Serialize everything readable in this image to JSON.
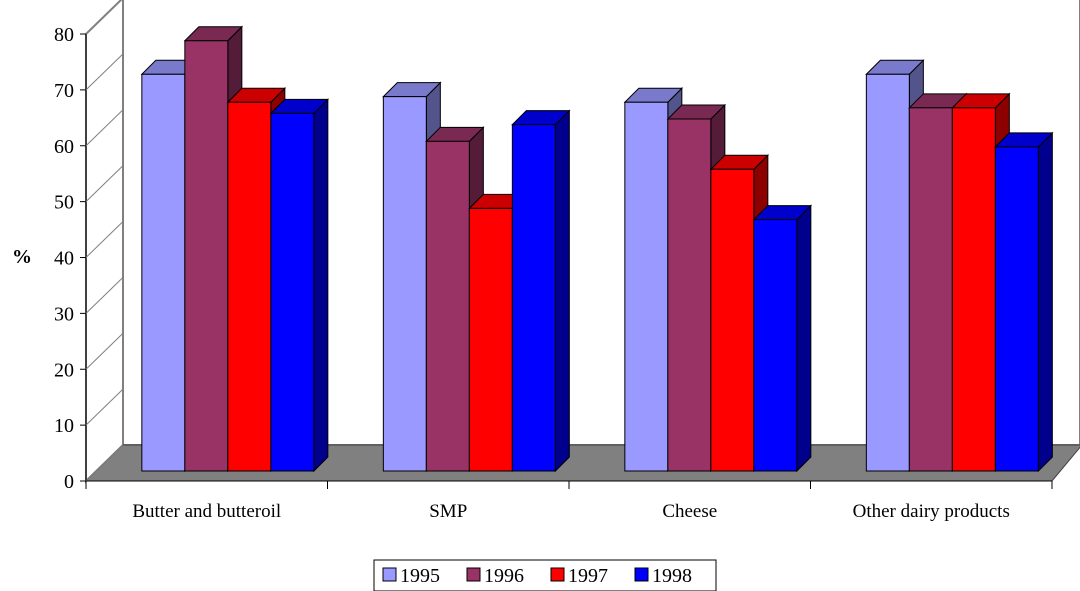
{
  "chart_data": {
    "type": "bar",
    "categories": [
      "Butter and butteroil",
      "SMP",
      "Cheese",
      "Other dairy products"
    ],
    "series": [
      {
        "name": "1995",
        "values": [
          71,
          67,
          66,
          71
        ],
        "color": "#9999ff"
      },
      {
        "name": "1996",
        "values": [
          77,
          59,
          63,
          65
        ],
        "color": "#993366"
      },
      {
        "name": "1997",
        "values": [
          66,
          47,
          54,
          65
        ],
        "color": "#ff0000"
      },
      {
        "name": "1998",
        "values": [
          64,
          62,
          45,
          58
        ],
        "color": "#0000ff"
      }
    ],
    "title": "",
    "xlabel": "",
    "ylabel": "%",
    "ylim": [
      0,
      80
    ],
    "yticks": [
      0,
      10,
      20,
      30,
      40,
      50,
      60,
      70,
      80
    ],
    "legend_position": "bottom",
    "floor_color": "#808080",
    "three_d": true,
    "grid": false
  }
}
